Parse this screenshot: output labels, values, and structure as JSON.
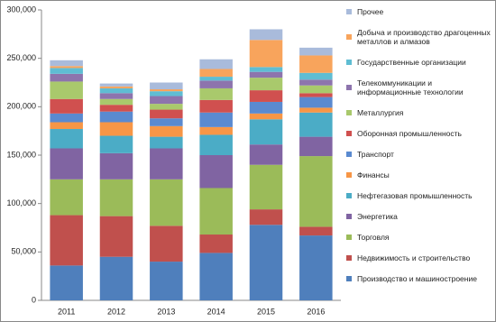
{
  "chart_data": {
    "type": "stacked_bar",
    "categories": [
      "2011",
      "2012",
      "2013",
      "2014",
      "2015",
      "2016"
    ],
    "ylim": [
      0,
      300000
    ],
    "yticks": [
      0,
      {
        "value": 50000,
        "label": "50,000"
      },
      {
        "value": 100000,
        "label": "100,000"
      },
      {
        "value": 150000,
        "label": "150,000"
      },
      {
        "value": 200000,
        "label": "200,000"
      },
      {
        "value": 250000,
        "label": "250,000"
      },
      {
        "value": 300000,
        "label": "300,000"
      }
    ],
    "grid": false,
    "legend": "right",
    "series": [
      {
        "name": "Производство и машиностроение",
        "color": "#4f7fbc",
        "values": [
          36000,
          45000,
          40000,
          49000,
          78000,
          67000
        ]
      },
      {
        "name": "Недвижимость и строительство",
        "color": "#c0504d",
        "values": [
          52000,
          42000,
          37000,
          19000,
          16000,
          9000
        ]
      },
      {
        "name": "Торговля",
        "color": "#9bbb59",
        "values": [
          37000,
          38000,
          48000,
          48000,
          46000,
          73000
        ]
      },
      {
        "name": "Энергетика",
        "color": "#8064a2",
        "values": [
          32000,
          27000,
          32000,
          34000,
          21000,
          20000
        ]
      },
      {
        "name": "Нефтегазовая промышленность",
        "color": "#4bacc6",
        "values": [
          20000,
          18000,
          12000,
          21000,
          26000,
          25000
        ]
      },
      {
        "name": "Финансы",
        "color": "#f79646",
        "values": [
          7000,
          14000,
          11000,
          8000,
          6000,
          5000
        ]
      },
      {
        "name": "Транспорт",
        "color": "#5a8ad0",
        "values": [
          9000,
          11000,
          8000,
          15000,
          12000,
          11000
        ]
      },
      {
        "name": "Оборонная промышленность",
        "color": "#d0504f",
        "values": [
          15000,
          7000,
          9000,
          13000,
          12000,
          4000
        ]
      },
      {
        "name": "Металлургия",
        "color": "#a9c96c",
        "values": [
          18000,
          6000,
          6000,
          12000,
          13000,
          8000
        ]
      },
      {
        "name": "Телекоммуникации и информационные технологии",
        "color": "#8d74ad",
        "values": [
          8000,
          6000,
          8000,
          8000,
          6000,
          6000
        ]
      },
      {
        "name": "Государственные организации",
        "color": "#5fbdd3",
        "values": [
          6000,
          5000,
          5000,
          4000,
          5000,
          7000
        ]
      },
      {
        "name": "Добыча и производство драгоценных металлов и алмазов",
        "color": "#f8a45c",
        "values": [
          2000,
          2000,
          2000,
          8000,
          28000,
          18000
        ]
      },
      {
        "name": "Прочее",
        "color": "#a9bbdb",
        "values": [
          6000,
          3000,
          7000,
          10000,
          11000,
          8000
        ]
      }
    ]
  }
}
